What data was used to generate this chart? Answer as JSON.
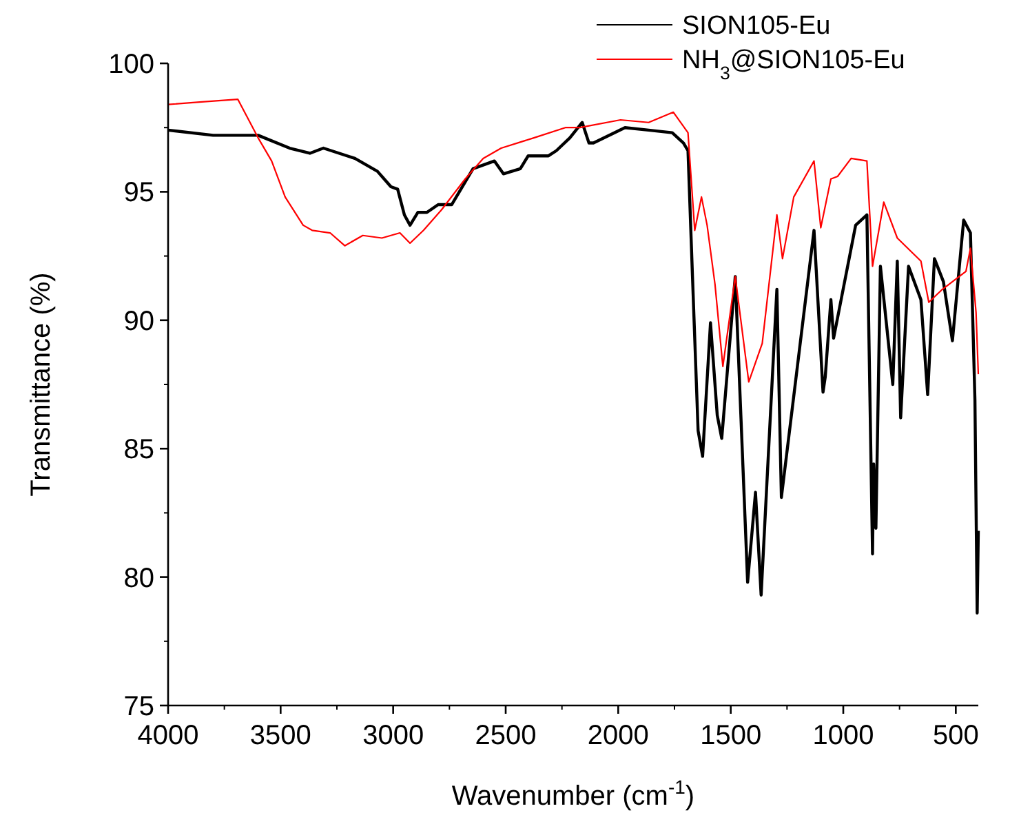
{
  "chart_data": {
    "type": "line",
    "xlabel": "Wavenumber (cm$^{-1}$)",
    "ylabel": "Transmittance (%)",
    "xlim": [
      4000,
      400
    ],
    "xticks": [
      4000,
      3500,
      3000,
      2500,
      2000,
      1500,
      1000,
      500
    ],
    "ylim": [
      75,
      100
    ],
    "yticks": [
      75,
      80,
      85,
      90,
      95,
      100
    ],
    "grid": false,
    "legend": "top right",
    "line_style": "solid",
    "marker": "none",
    "series": [
      {
        "name": "SION105-Eu",
        "color": "#000000",
        "x": [
          4000,
          3800,
          3600,
          3460,
          3370,
          3310,
          3170,
          3070,
          3010,
          2980,
          2950,
          2925,
          2890,
          2850,
          2800,
          2740,
          2645,
          2550,
          2510,
          2435,
          2400,
          2310,
          2275,
          2215,
          2160,
          2130,
          2110,
          1970,
          1865,
          1760,
          1710,
          1690,
          1670,
          1645,
          1625,
          1590,
          1560,
          1540,
          1480,
          1425,
          1390,
          1365,
          1295,
          1275,
          1130,
          1090,
          1080,
          1055,
          1043,
          945,
          895,
          870,
          865,
          855,
          835,
          780,
          760,
          745,
          710,
          655,
          625,
          595,
          555,
          515,
          465,
          435,
          415,
          405,
          400
        ],
        "values": [
          97.4,
          97.2,
          97.2,
          96.7,
          96.5,
          96.7,
          96.3,
          95.8,
          95.2,
          95.1,
          94.1,
          93.7,
          94.2,
          94.2,
          94.5,
          94.5,
          95.9,
          96.2,
          95.7,
          95.9,
          96.4,
          96.4,
          96.6,
          97.1,
          97.7,
          96.9,
          96.9,
          97.5,
          97.4,
          97.3,
          96.9,
          96.6,
          91.7,
          85.7,
          84.7,
          89.9,
          86.3,
          85.4,
          91.7,
          79.8,
          83.3,
          79.3,
          91.2,
          83.1,
          93.5,
          87.2,
          87.8,
          90.8,
          89.3,
          93.7,
          94.1,
          80.9,
          84.4,
          81.9,
          92.1,
          87.5,
          92.3,
          86.2,
          92.1,
          90.8,
          87.1,
          92.4,
          91.5,
          89.2,
          93.9,
          93.4,
          86.9,
          78.6,
          81.8
        ]
      },
      {
        "name": "NH$_{3}$@SION105-Eu",
        "color": "#ff0000",
        "x": [
          4000,
          3850,
          3690,
          3600,
          3540,
          3480,
          3400,
          3360,
          3280,
          3215,
          3135,
          3050,
          2970,
          2925,
          2865,
          2785,
          2680,
          2600,
          2520,
          2375,
          2235,
          2170,
          1990,
          1865,
          1755,
          1690,
          1660,
          1630,
          1605,
          1570,
          1535,
          1480,
          1420,
          1360,
          1295,
          1270,
          1220,
          1130,
          1100,
          1055,
          1025,
          965,
          895,
          870,
          820,
          760,
          655,
          620,
          560,
          455,
          435,
          410,
          400
        ],
        "values": [
          98.4,
          98.5,
          98.6,
          97.1,
          96.2,
          94.8,
          93.7,
          93.5,
          93.4,
          92.9,
          93.3,
          93.2,
          93.4,
          93.0,
          93.5,
          94.3,
          95.5,
          96.3,
          96.7,
          97.1,
          97.5,
          97.5,
          97.8,
          97.7,
          98.1,
          97.3,
          93.5,
          94.8,
          93.7,
          91.4,
          88.2,
          91.7,
          87.6,
          89.1,
          94.1,
          92.4,
          94.8,
          96.2,
          93.6,
          95.5,
          95.6,
          96.3,
          96.2,
          92.1,
          94.6,
          93.2,
          92.3,
          90.7,
          91.2,
          91.9,
          92.8,
          90.3,
          87.9
        ]
      }
    ]
  }
}
